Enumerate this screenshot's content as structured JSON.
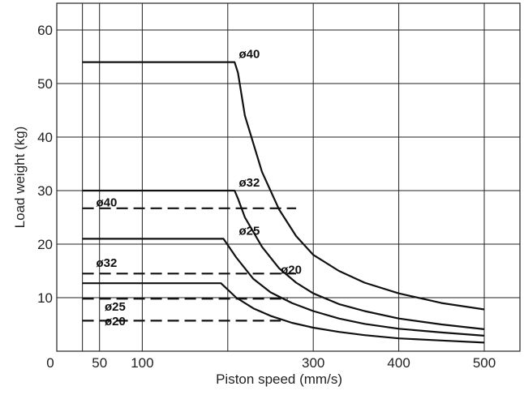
{
  "chart_data": {
    "type": "line",
    "title": "",
    "xlabel": "Piston speed (mm/s)",
    "ylabel": "Load weight (kg)",
    "xlim": [
      0,
      510
    ],
    "ylim": [
      0,
      65
    ],
    "x_ticks": [
      50,
      100,
      300,
      400,
      500
    ],
    "x_tick_labels": [
      "50",
      "100",
      "300",
      "400",
      "500"
    ],
    "x_origin_label": "0",
    "y_ticks": [
      10,
      20,
      30,
      40,
      50,
      60
    ],
    "y_tick_labels": [
      "10",
      "20",
      "30",
      "40",
      "50",
      "60"
    ],
    "x_grid": [
      30,
      50,
      100,
      200,
      300,
      400,
      500
    ],
    "y_grid": [
      10,
      20,
      30,
      40,
      50,
      60
    ],
    "grid": true,
    "solid_series": [
      {
        "label": "ø40",
        "label_at": [
          213,
          55.5
        ],
        "points": [
          [
            30,
            54
          ],
          [
            208,
            54
          ],
          [
            212,
            52
          ],
          [
            220,
            44
          ],
          [
            240,
            33.5
          ],
          [
            260,
            26.5
          ],
          [
            280,
            21.5
          ],
          [
            300,
            18
          ],
          [
            330,
            15
          ],
          [
            360,
            12.8
          ],
          [
            400,
            10.8
          ],
          [
            450,
            9
          ],
          [
            500,
            7.8
          ]
        ]
      },
      {
        "label": "ø32",
        "label_at": [
          213,
          31.5
        ],
        "points": [
          [
            30,
            30
          ],
          [
            208,
            30
          ],
          [
            212,
            28.5
          ],
          [
            220,
            25
          ],
          [
            240,
            19.5
          ],
          [
            260,
            15.5
          ],
          [
            280,
            12.8
          ],
          [
            300,
            10.8
          ],
          [
            330,
            8.8
          ],
          [
            360,
            7.5
          ],
          [
            400,
            6.1
          ],
          [
            450,
            5
          ],
          [
            500,
            4.1
          ]
        ]
      },
      {
        "label": "ø25",
        "label_at": [
          213,
          22.5
        ],
        "points": [
          [
            30,
            21
          ],
          [
            195,
            21
          ],
          [
            210,
            17.5
          ],
          [
            230,
            13.5
          ],
          [
            250,
            11
          ],
          [
            275,
            9
          ],
          [
            300,
            7.5
          ],
          [
            330,
            6.1
          ],
          [
            360,
            5.1
          ],
          [
            400,
            4.2
          ],
          [
            450,
            3.5
          ],
          [
            500,
            2.9
          ]
        ]
      },
      {
        "label": "ø20",
        "label_at": [
          262,
          15.2
        ],
        "points": [
          [
            30,
            12.7
          ],
          [
            192,
            12.7
          ],
          [
            210,
            10
          ],
          [
            230,
            8
          ],
          [
            250,
            6.6
          ],
          [
            275,
            5.3
          ],
          [
            300,
            4.4
          ],
          [
            330,
            3.6
          ],
          [
            360,
            3
          ],
          [
            400,
            2.4
          ],
          [
            450,
            2
          ],
          [
            500,
            1.6
          ]
        ]
      }
    ],
    "dashed_series": [
      {
        "label": "ø40",
        "label_at": [
          46,
          27.8
        ],
        "points": [
          [
            30,
            26.7
          ],
          [
            280,
            26.7
          ]
        ]
      },
      {
        "label": "ø32",
        "label_at": [
          46,
          16.5
        ],
        "points": [
          [
            30,
            14.5
          ],
          [
            280,
            14.5
          ]
        ]
      },
      {
        "label": "ø25",
        "label_at": [
          56,
          8.3
        ],
        "points": [
          [
            30,
            9.8
          ],
          [
            270,
            9.8
          ]
        ]
      },
      {
        "label": "ø20",
        "label_at": [
          56,
          5.6
        ],
        "points": [
          [
            30,
            5.7
          ],
          [
            262,
            5.7
          ]
        ]
      }
    ]
  }
}
